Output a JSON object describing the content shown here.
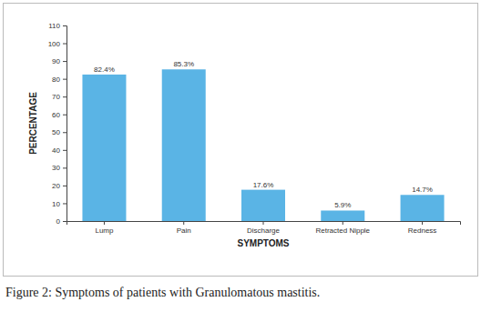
{
  "chart_data": {
    "type": "bar",
    "title": "Figure 2: Symptoms of patients with Granulomatous mastitis.",
    "x_label": "SYMPTOMS",
    "y_label": "PERCENTAGE",
    "categories": [
      "Lump",
      "Pain",
      "Discharge",
      "Retracted Nipple",
      "Redness"
    ],
    "values": [
      82.4,
      85.3,
      17.6,
      5.9,
      14.7
    ],
    "value_labels": [
      "82.4%",
      "85.3%",
      "17.6%",
      "5.9%",
      "14.7%"
    ],
    "data_labels": true,
    "color": "#5ab4e5",
    "ylim": [
      0,
      110
    ],
    "yticks": [
      0,
      10,
      20,
      30,
      40,
      50,
      60,
      70,
      80,
      90,
      100,
      110
    ],
    "grid": false
  }
}
